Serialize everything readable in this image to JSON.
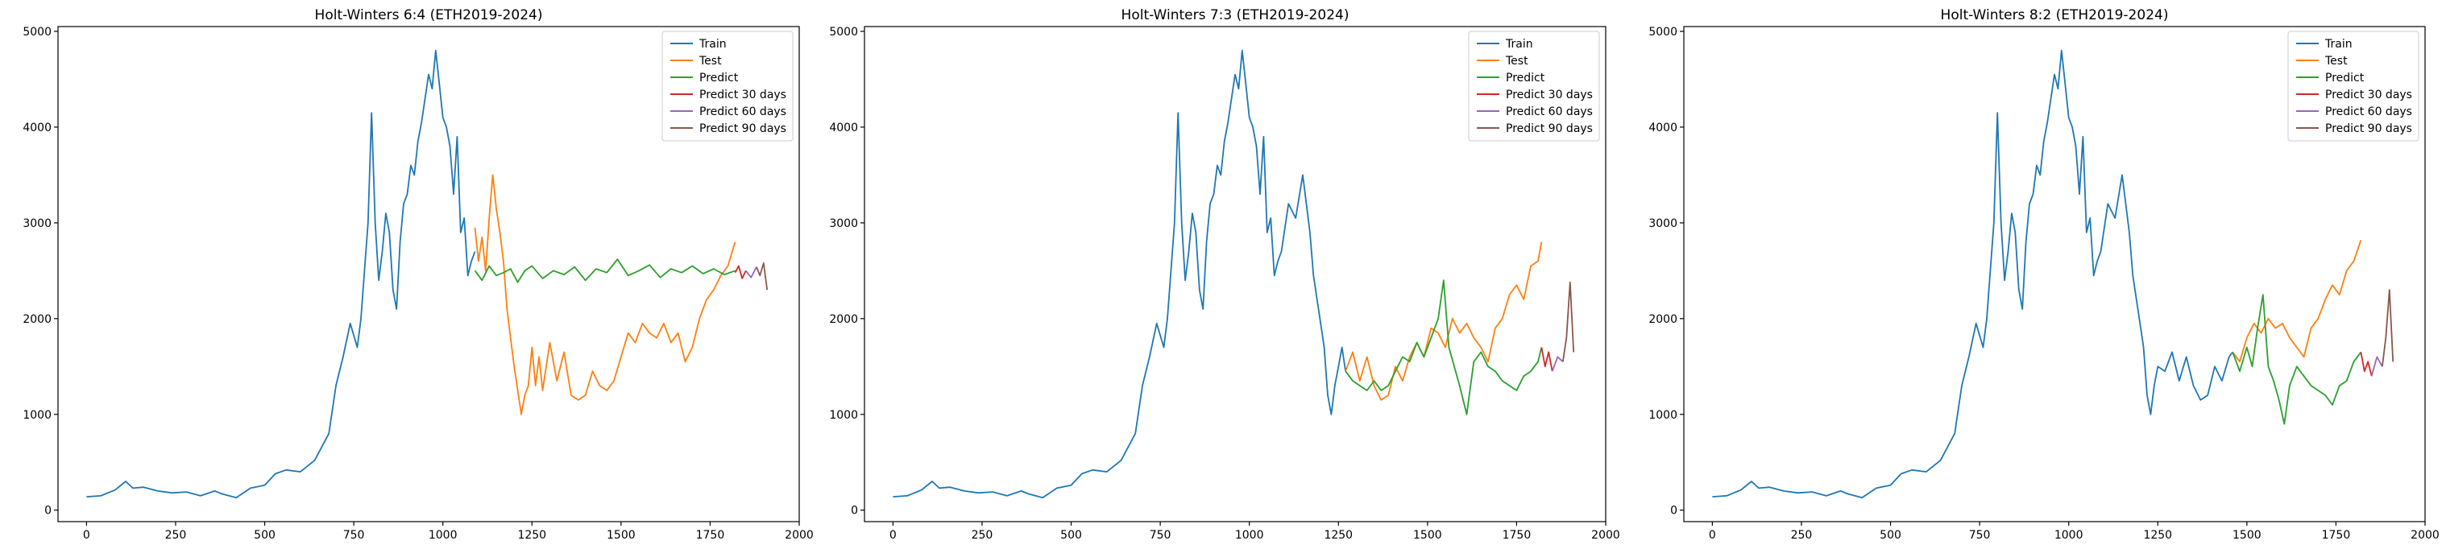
{
  "chart_data": [
    {
      "type": "line",
      "title": "Holt-Winters 6:4 (ETH2019-2024)",
      "xlabel": "",
      "ylabel": "",
      "xlim": [
        -80,
        2000
      ],
      "ylim": [
        -120,
        5050
      ],
      "xticks": [
        0,
        250,
        500,
        750,
        1000,
        1250,
        1500,
        1750,
        2000
      ],
      "yticks": [
        0,
        1000,
        2000,
        3000,
        4000,
        5000
      ],
      "grid": false,
      "legend": "top-right",
      "series": [
        {
          "name": "Train",
          "color": "#1f77b4",
          "x": [
            0,
            40,
            80,
            110,
            130,
            160,
            200,
            240,
            280,
            320,
            360,
            380,
            420,
            460,
            500,
            530,
            560,
            600,
            640,
            680,
            700,
            720,
            740,
            760,
            770,
            780,
            790,
            800,
            810,
            820,
            830,
            840,
            850,
            860,
            870,
            880,
            890,
            900,
            910,
            920,
            930,
            940,
            950,
            960,
            970,
            980,
            990,
            1000,
            1010,
            1020,
            1030,
            1040,
            1050,
            1060,
            1070,
            1080,
            1090
          ],
          "y": [
            140,
            150,
            210,
            300,
            230,
            240,
            200,
            180,
            190,
            150,
            200,
            170,
            130,
            230,
            260,
            380,
            420,
            400,
            520,
            800,
            1300,
            1600,
            1950,
            1700,
            2000,
            2500,
            3000,
            4150,
            3000,
            2400,
            2700,
            3100,
            2900,
            2300,
            2100,
            2800,
            3200,
            3300,
            3600,
            3500,
            3850,
            4050,
            4300,
            4550,
            4400,
            4800,
            4450,
            4100,
            4000,
            3800,
            3300,
            3900,
            2900,
            3050,
            2450,
            2600,
            2700
          ]
        },
        {
          "name": "Test",
          "color": "#ff7f0e",
          "x": [
            1090,
            1100,
            1110,
            1120,
            1130,
            1140,
            1150,
            1160,
            1170,
            1180,
            1190,
            1200,
            1210,
            1220,
            1230,
            1240,
            1250,
            1260,
            1270,
            1280,
            1300,
            1320,
            1340,
            1360,
            1380,
            1400,
            1420,
            1440,
            1460,
            1480,
            1500,
            1520,
            1540,
            1560,
            1580,
            1600,
            1620,
            1640,
            1660,
            1680,
            1700,
            1720,
            1740,
            1760,
            1780,
            1800,
            1820
          ],
          "y": [
            2950,
            2600,
            2850,
            2500,
            3050,
            3500,
            3150,
            2900,
            2600,
            2100,
            1800,
            1500,
            1250,
            1000,
            1200,
            1300,
            1700,
            1300,
            1600,
            1250,
            1750,
            1350,
            1650,
            1200,
            1150,
            1200,
            1450,
            1300,
            1250,
            1350,
            1600,
            1850,
            1750,
            1950,
            1850,
            1800,
            1950,
            1750,
            1850,
            1550,
            1700,
            2000,
            2200,
            2300,
            2450,
            2550,
            2800
          ]
        },
        {
          "name": "Predict",
          "color": "#2ca02c",
          "x": [
            1090,
            1110,
            1130,
            1150,
            1170,
            1190,
            1210,
            1230,
            1250,
            1280,
            1310,
            1340,
            1370,
            1400,
            1430,
            1460,
            1490,
            1520,
            1550,
            1580,
            1610,
            1640,
            1670,
            1700,
            1730,
            1760,
            1790,
            1820
          ],
          "y": [
            2500,
            2400,
            2550,
            2450,
            2480,
            2520,
            2380,
            2500,
            2550,
            2420,
            2500,
            2460,
            2540,
            2400,
            2520,
            2480,
            2620,
            2450,
            2500,
            2560,
            2430,
            2520,
            2480,
            2550,
            2470,
            2520,
            2460,
            2500
          ]
        },
        {
          "name": "Predict 30 days",
          "color": "#d62728",
          "x": [
            1820,
            1830,
            1840,
            1850
          ],
          "y": [
            2480,
            2550,
            2420,
            2500
          ]
        },
        {
          "name": "Predict 60 days",
          "color": "#9467bd",
          "x": [
            1850,
            1865,
            1880
          ],
          "y": [
            2500,
            2430,
            2540
          ]
        },
        {
          "name": "Predict 90 days",
          "color": "#8c564b",
          "x": [
            1880,
            1890,
            1900,
            1910
          ],
          "y": [
            2540,
            2450,
            2580,
            2300
          ]
        }
      ]
    },
    {
      "type": "line",
      "title": "Holt-Winters 7:3 (ETH2019-2024)",
      "xlabel": "",
      "ylabel": "",
      "xlim": [
        -80,
        2000
      ],
      "ylim": [
        -120,
        5050
      ],
      "xticks": [
        0,
        250,
        500,
        750,
        1000,
        1250,
        1500,
        1750,
        2000
      ],
      "yticks": [
        0,
        1000,
        2000,
        3000,
        4000,
        5000
      ],
      "grid": false,
      "legend": "top-right",
      "series": [
        {
          "name": "Train",
          "color": "#1f77b4",
          "x": [
            0,
            40,
            80,
            110,
            130,
            160,
            200,
            240,
            280,
            320,
            360,
            380,
            420,
            460,
            500,
            530,
            560,
            600,
            640,
            680,
            700,
            720,
            740,
            760,
            770,
            780,
            790,
            800,
            810,
            820,
            830,
            840,
            850,
            860,
            870,
            880,
            890,
            900,
            910,
            920,
            930,
            940,
            950,
            960,
            970,
            980,
            990,
            1000,
            1010,
            1020,
            1030,
            1040,
            1050,
            1060,
            1070,
            1080,
            1090,
            1110,
            1130,
            1150,
            1170,
            1180,
            1200,
            1210,
            1220,
            1230,
            1240,
            1250,
            1260,
            1270
          ],
          "y": [
            140,
            150,
            210,
            300,
            230,
            240,
            200,
            180,
            190,
            150,
            200,
            170,
            130,
            230,
            260,
            380,
            420,
            400,
            520,
            800,
            1300,
            1600,
            1950,
            1700,
            2000,
            2500,
            3000,
            4150,
            3000,
            2400,
            2700,
            3100,
            2900,
            2300,
            2100,
            2800,
            3200,
            3300,
            3600,
            3500,
            3850,
            4050,
            4300,
            4550,
            4400,
            4800,
            4450,
            4100,
            4000,
            3800,
            3300,
            3900,
            2900,
            3050,
            2450,
            2600,
            2700,
            3200,
            3050,
            3500,
            2900,
            2450,
            1950,
            1700,
            1200,
            1000,
            1300,
            1500,
            1700,
            1450
          ]
        },
        {
          "name": "Test",
          "color": "#ff7f0e",
          "x": [
            1270,
            1290,
            1310,
            1330,
            1350,
            1370,
            1390,
            1410,
            1430,
            1450,
            1470,
            1490,
            1510,
            1530,
            1550,
            1570,
            1590,
            1610,
            1630,
            1650,
            1670,
            1690,
            1710,
            1730,
            1750,
            1770,
            1790,
            1810,
            1820
          ],
          "y": [
            1450,
            1650,
            1350,
            1600,
            1300,
            1150,
            1200,
            1500,
            1350,
            1600,
            1750,
            1600,
            1900,
            1850,
            1700,
            2000,
            1850,
            1950,
            1800,
            1700,
            1550,
            1900,
            2000,
            2250,
            2350,
            2200,
            2550,
            2600,
            2800
          ]
        },
        {
          "name": "Predict",
          "color": "#2ca02c",
          "x": [
            1270,
            1290,
            1310,
            1330,
            1350,
            1370,
            1390,
            1410,
            1430,
            1450,
            1470,
            1490,
            1510,
            1530,
            1545,
            1560,
            1575,
            1590,
            1610,
            1630,
            1650,
            1670,
            1690,
            1710,
            1730,
            1750,
            1770,
            1790,
            1810,
            1820
          ],
          "y": [
            1450,
            1350,
            1300,
            1250,
            1350,
            1250,
            1300,
            1450,
            1600,
            1550,
            1750,
            1600,
            1800,
            2000,
            2400,
            1700,
            1500,
            1300,
            1000,
            1550,
            1650,
            1500,
            1450,
            1350,
            1300,
            1250,
            1400,
            1450,
            1550,
            1700
          ]
        },
        {
          "name": "Predict 30 days",
          "color": "#d62728",
          "x": [
            1820,
            1830,
            1840,
            1850
          ],
          "y": [
            1700,
            1500,
            1650,
            1450
          ]
        },
        {
          "name": "Predict 60 days",
          "color": "#9467bd",
          "x": [
            1850,
            1865,
            1880
          ],
          "y": [
            1450,
            1600,
            1550
          ]
        },
        {
          "name": "Predict 90 days",
          "color": "#8c564b",
          "x": [
            1880,
            1890,
            1900,
            1910
          ],
          "y": [
            1550,
            1800,
            2380,
            1650
          ]
        }
      ]
    },
    {
      "type": "line",
      "title": "Holt-Winters 8:2 (ETH2019-2024)",
      "xlabel": "",
      "ylabel": "",
      "xlim": [
        -80,
        2000
      ],
      "ylim": [
        -120,
        5050
      ],
      "xticks": [
        0,
        250,
        500,
        750,
        1000,
        1250,
        1500,
        1750,
        2000
      ],
      "yticks": [
        0,
        1000,
        2000,
        3000,
        4000,
        5000
      ],
      "grid": false,
      "legend": "top-right",
      "series": [
        {
          "name": "Train",
          "color": "#1f77b4",
          "x": [
            0,
            40,
            80,
            110,
            130,
            160,
            200,
            240,
            280,
            320,
            360,
            380,
            420,
            460,
            500,
            530,
            560,
            600,
            640,
            680,
            700,
            720,
            740,
            760,
            770,
            780,
            790,
            800,
            810,
            820,
            830,
            840,
            850,
            860,
            870,
            880,
            890,
            900,
            910,
            920,
            930,
            940,
            950,
            960,
            970,
            980,
            990,
            1000,
            1010,
            1020,
            1030,
            1040,
            1050,
            1060,
            1070,
            1080,
            1090,
            1110,
            1130,
            1150,
            1170,
            1180,
            1200,
            1210,
            1220,
            1230,
            1240,
            1250,
            1270,
            1290,
            1310,
            1330,
            1350,
            1370,
            1390,
            1410,
            1430,
            1450,
            1460
          ],
          "y": [
            140,
            150,
            210,
            300,
            230,
            240,
            200,
            180,
            190,
            150,
            200,
            170,
            130,
            230,
            260,
            380,
            420,
            400,
            520,
            800,
            1300,
            1600,
            1950,
            1700,
            2000,
            2500,
            3000,
            4150,
            3000,
            2400,
            2700,
            3100,
            2900,
            2300,
            2100,
            2800,
            3200,
            3300,
            3600,
            3500,
            3850,
            4050,
            4300,
            4550,
            4400,
            4800,
            4450,
            4100,
            4000,
            3800,
            3300,
            3900,
            2900,
            3050,
            2450,
            2600,
            2700,
            3200,
            3050,
            3500,
            2900,
            2450,
            1950,
            1700,
            1200,
            1000,
            1300,
            1500,
            1450,
            1650,
            1350,
            1600,
            1300,
            1150,
            1200,
            1500,
            1350,
            1600,
            1650
          ]
        },
        {
          "name": "Test",
          "color": "#ff7f0e",
          "x": [
            1460,
            1480,
            1500,
            1520,
            1540,
            1560,
            1580,
            1600,
            1620,
            1640,
            1660,
            1680,
            1700,
            1720,
            1740,
            1760,
            1780,
            1800,
            1820
          ],
          "y": [
            1650,
            1550,
            1800,
            1950,
            1850,
            2000,
            1900,
            1950,
            1800,
            1700,
            1600,
            1900,
            2000,
            2200,
            2350,
            2250,
            2500,
            2600,
            2820
          ]
        },
        {
          "name": "Predict",
          "color": "#2ca02c",
          "x": [
            1460,
            1480,
            1500,
            1515,
            1530,
            1545,
            1560,
            1575,
            1590,
            1605,
            1620,
            1640,
            1660,
            1680,
            1700,
            1720,
            1740,
            1760,
            1780,
            1800,
            1820
          ],
          "y": [
            1650,
            1450,
            1700,
            1500,
            1900,
            2250,
            1500,
            1350,
            1150,
            900,
            1300,
            1500,
            1400,
            1300,
            1250,
            1200,
            1100,
            1300,
            1350,
            1550,
            1650
          ]
        },
        {
          "name": "Predict 30 days",
          "color": "#d62728",
          "x": [
            1820,
            1830,
            1840,
            1850
          ],
          "y": [
            1650,
            1450,
            1550,
            1400
          ]
        },
        {
          "name": "Predict 60 days",
          "color": "#9467bd",
          "x": [
            1850,
            1865,
            1880
          ],
          "y": [
            1400,
            1600,
            1500
          ]
        },
        {
          "name": "Predict 90 days",
          "color": "#8c564b",
          "x": [
            1880,
            1890,
            1900,
            1910
          ],
          "y": [
            1500,
            1800,
            2300,
            1550
          ]
        }
      ]
    }
  ]
}
